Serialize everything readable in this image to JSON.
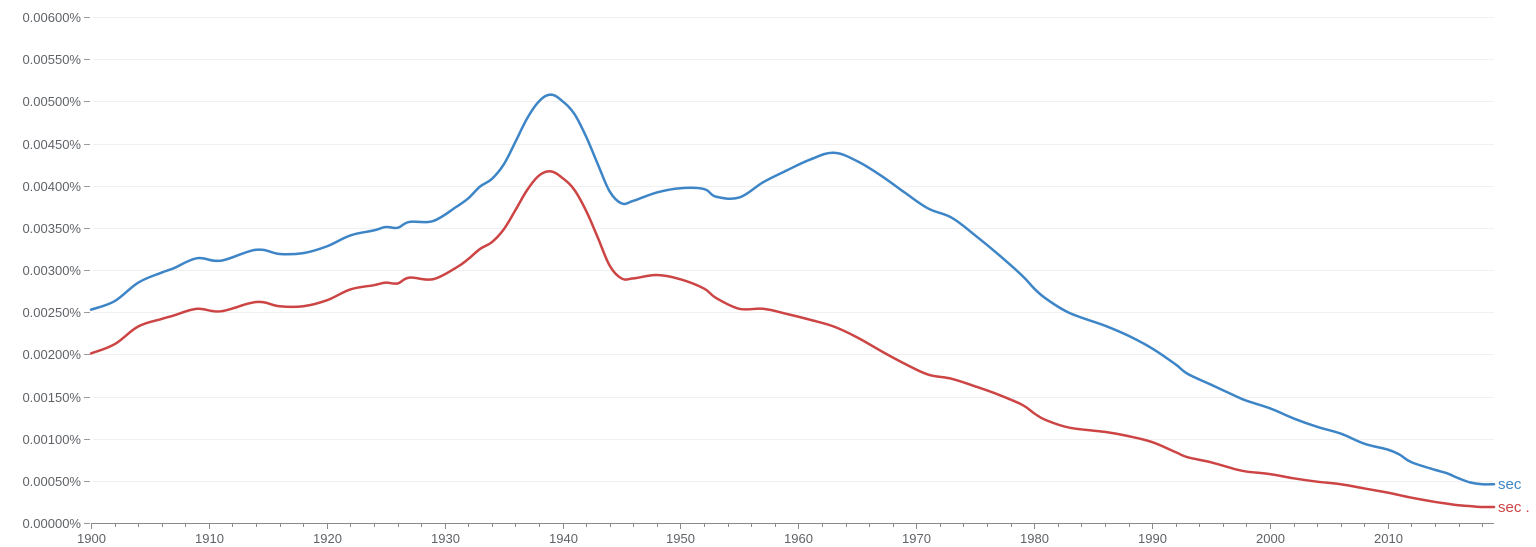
{
  "chart_data": {
    "type": "line",
    "title": "",
    "xlabel": "",
    "ylabel": "",
    "xlim": [
      1900,
      2019
    ],
    "ylim": [
      0,
      0.006
    ],
    "grid": true,
    "legend": "inline-right",
    "xticks": [
      {
        "value": 1900,
        "label": "1900"
      },
      {
        "value": 1910,
        "label": "1910"
      },
      {
        "value": 1920,
        "label": "1920"
      },
      {
        "value": 1930,
        "label": "1930"
      },
      {
        "value": 1940,
        "label": "1940"
      },
      {
        "value": 1950,
        "label": "1950"
      },
      {
        "value": 1960,
        "label": "1960"
      },
      {
        "value": 1970,
        "label": "1970"
      },
      {
        "value": 1980,
        "label": "1980"
      },
      {
        "value": 1990,
        "label": "1990"
      },
      {
        "value": 2000,
        "label": "2000"
      },
      {
        "value": 2010,
        "label": "2010"
      }
    ],
    "yticks": [
      {
        "value": 0,
        "label": "0.00000%"
      },
      {
        "value": 0.0005,
        "label": "0.00050%"
      },
      {
        "value": 0.001,
        "label": "0.00100%"
      },
      {
        "value": 0.0015,
        "label": "0.00150%"
      },
      {
        "value": 0.002,
        "label": "0.00200%"
      },
      {
        "value": 0.0025,
        "label": "0.00250%"
      },
      {
        "value": 0.003,
        "label": "0.00300%"
      },
      {
        "value": 0.0035,
        "label": "0.00350%"
      },
      {
        "value": 0.004,
        "label": "0.00400%"
      },
      {
        "value": 0.0045,
        "label": "0.00450%"
      },
      {
        "value": 0.005,
        "label": "0.00500%"
      },
      {
        "value": 0.0055,
        "label": "0.00550%"
      },
      {
        "value": 0.006,
        "label": "0.00600%"
      }
    ],
    "series": [
      {
        "name": "sec",
        "color": "#3d85c6",
        "points": [
          [
            1900,
            0.00253
          ],
          [
            1902,
            0.00263
          ],
          [
            1904,
            0.00285
          ],
          [
            1906,
            0.00297
          ],
          [
            1907,
            0.00302
          ],
          [
            1909,
            0.00314
          ],
          [
            1911,
            0.00311
          ],
          [
            1914,
            0.00324
          ],
          [
            1916,
            0.00319
          ],
          [
            1918,
            0.0032
          ],
          [
            1920,
            0.00328
          ],
          [
            1922,
            0.00341
          ],
          [
            1924,
            0.00347
          ],
          [
            1925,
            0.00351
          ],
          [
            1926,
            0.0035
          ],
          [
            1927,
            0.00357
          ],
          [
            1929,
            0.00358
          ],
          [
            1931,
            0.00375
          ],
          [
            1932,
            0.00385
          ],
          [
            1933,
            0.00399
          ],
          [
            1934,
            0.00408
          ],
          [
            1935,
            0.00425
          ],
          [
            1936,
            0.00452
          ],
          [
            1937,
            0.0048
          ],
          [
            1938,
            0.005
          ],
          [
            1939,
            0.00508
          ],
          [
            1940,
            0.005
          ],
          [
            1941,
            0.00485
          ],
          [
            1942,
            0.00458
          ],
          [
            1943,
            0.00425
          ],
          [
            1944,
            0.00393
          ],
          [
            1945,
            0.00379
          ],
          [
            1946,
            0.00382
          ],
          [
            1948,
            0.00392
          ],
          [
            1950,
            0.00397
          ],
          [
            1952,
            0.00396
          ],
          [
            1953,
            0.00387
          ],
          [
            1955,
            0.00386
          ],
          [
            1957,
            0.00404
          ],
          [
            1959,
            0.00418
          ],
          [
            1961,
            0.00431
          ],
          [
            1963,
            0.00439
          ],
          [
            1965,
            0.00429
          ],
          [
            1967,
            0.00412
          ],
          [
            1969,
            0.00392
          ],
          [
            1971,
            0.00373
          ],
          [
            1973,
            0.00362
          ],
          [
            1975,
            0.00341
          ],
          [
            1977,
            0.00318
          ],
          [
            1979,
            0.00293
          ],
          [
            1980,
            0.00278
          ],
          [
            1981,
            0.00266
          ],
          [
            1983,
            0.00249
          ],
          [
            1986,
            0.00234
          ],
          [
            1988,
            0.00222
          ],
          [
            1990,
            0.00207
          ],
          [
            1992,
            0.00188
          ],
          [
            1993,
            0.00177
          ],
          [
            1995,
            0.00164
          ],
          [
            1997,
            0.00151
          ],
          [
            1998,
            0.00145
          ],
          [
            2000,
            0.00136
          ],
          [
            2002,
            0.00124
          ],
          [
            2004,
            0.00114
          ],
          [
            2006,
            0.00106
          ],
          [
            2008,
            0.00094
          ],
          [
            2010,
            0.00087
          ],
          [
            2011,
            0.00081
          ],
          [
            2012,
            0.00072
          ],
          [
            2014,
            0.00063
          ],
          [
            2015,
            0.00059
          ],
          [
            2016,
            0.00053
          ],
          [
            2017,
            0.00048
          ],
          [
            2018,
            0.00046
          ],
          [
            2019,
            0.00046
          ]
        ]
      },
      {
        "name": "sec .",
        "color": "#cc4444",
        "points": [
          [
            1900,
            0.00201
          ],
          [
            1902,
            0.00212
          ],
          [
            1904,
            0.00233
          ],
          [
            1906,
            0.00242
          ],
          [
            1907,
            0.00246
          ],
          [
            1909,
            0.00254
          ],
          [
            1911,
            0.00251
          ],
          [
            1914,
            0.00262
          ],
          [
            1916,
            0.00257
          ],
          [
            1918,
            0.00257
          ],
          [
            1920,
            0.00264
          ],
          [
            1922,
            0.00277
          ],
          [
            1924,
            0.00282
          ],
          [
            1925,
            0.00285
          ],
          [
            1926,
            0.00284
          ],
          [
            1927,
            0.00291
          ],
          [
            1929,
            0.00289
          ],
          [
            1931,
            0.00303
          ],
          [
            1932,
            0.00313
          ],
          [
            1933,
            0.00325
          ],
          [
            1934,
            0.00333
          ],
          [
            1935,
            0.00348
          ],
          [
            1936,
            0.00371
          ],
          [
            1937,
            0.00395
          ],
          [
            1938,
            0.00412
          ],
          [
            1939,
            0.00417
          ],
          [
            1940,
            0.00409
          ],
          [
            1941,
            0.00395
          ],
          [
            1942,
            0.0037
          ],
          [
            1943,
            0.00338
          ],
          [
            1944,
            0.00305
          ],
          [
            1945,
            0.0029
          ],
          [
            1946,
            0.0029
          ],
          [
            1948,
            0.00294
          ],
          [
            1950,
            0.00289
          ],
          [
            1952,
            0.00278
          ],
          [
            1953,
            0.00267
          ],
          [
            1955,
            0.00254
          ],
          [
            1957,
            0.00254
          ],
          [
            1959,
            0.00248
          ],
          [
            1961,
            0.00241
          ],
          [
            1963,
            0.00233
          ],
          [
            1965,
            0.0022
          ],
          [
            1967,
            0.00204
          ],
          [
            1969,
            0.00189
          ],
          [
            1971,
            0.00176
          ],
          [
            1973,
            0.00171
          ],
          [
            1975,
            0.00162
          ],
          [
            1977,
            0.00152
          ],
          [
            1979,
            0.0014
          ],
          [
            1980,
            0.0013
          ],
          [
            1981,
            0.00122
          ],
          [
            1983,
            0.00113
          ],
          [
            1986,
            0.00108
          ],
          [
            1988,
            0.00103
          ],
          [
            1990,
            0.00096
          ],
          [
            1992,
            0.00084
          ],
          [
            1993,
            0.00078
          ],
          [
            1995,
            0.00072
          ],
          [
            1997,
            0.00064
          ],
          [
            1998,
            0.00061
          ],
          [
            2000,
            0.00058
          ],
          [
            2002,
            0.00053
          ],
          [
            2004,
            0.00049
          ],
          [
            2006,
            0.00046
          ],
          [
            2008,
            0.00041
          ],
          [
            2010,
            0.00036
          ],
          [
            2011,
            0.00033
          ],
          [
            2012,
            0.0003
          ],
          [
            2014,
            0.00025
          ],
          [
            2015,
            0.00023
          ],
          [
            2016,
            0.00021
          ],
          [
            2017,
            0.0002
          ],
          [
            2018,
            0.00019
          ],
          [
            2019,
            0.00019
          ]
        ]
      }
    ]
  }
}
